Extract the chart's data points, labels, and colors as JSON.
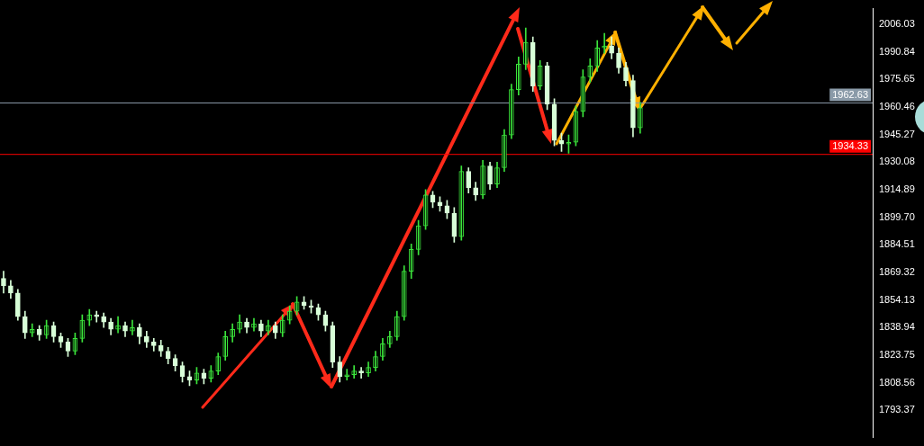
{
  "chart_data": {
    "type": "candlestick",
    "colors": [
      "#d8ffd8",
      "#d8ffd8",
      "#d8ffd8",
      "#d8ffd8",
      "#3be33b",
      "#d8ffd8",
      "#3be33b",
      "#d8ffd8",
      "#d8ffd8",
      "#d8ffd8",
      "#3be33b",
      "#3be33b",
      "#3be33b",
      "#d8ffd8",
      "#d8ffd8",
      "#d8ffd8",
      "#3be33b",
      "#d8ffd8",
      "#3be33b",
      "#d8ffd8",
      "#d8ffd8",
      "#d8ffd8",
      "#d8ffd8",
      "#d8ffd8",
      "#d8ffd8",
      "#d8ffd8",
      "#d8ffd8",
      "#3be33b",
      "#d8ffd8",
      "#3be33b",
      "#3be33b",
      "#3be33b",
      "#3be33b",
      "#3be33b",
      "#d8ffd8",
      "#3be33b",
      "#d8ffd8",
      "#3be33b",
      "#d8ffd8",
      "#3be33b",
      "#3be33b",
      "#3be33b",
      "#d8ffd8",
      "#d8ffd8",
      "#d8ffd8",
      "#d8ffd8",
      "#d8ffd8",
      "#d8ffd8",
      "#3be33b",
      "#3be33b",
      "#d8ffd8",
      "#3be33b",
      "#3be33b",
      "#3be33b",
      "#3be33b",
      "#3be33b",
      "#3be33b",
      "#3be33b",
      "#3be33b",
      "#3be33b",
      "#d8ffd8",
      "#d8ffd8",
      "#d8ffd8",
      "#d8ffd8",
      "#3be33b",
      "#d8ffd8",
      "#d8ffd8",
      "#3be33b",
      "#d8ffd8",
      "#3be33b",
      "#3be33b",
      "#3be33b",
      "#3be33b",
      "#3be33b",
      "#d8ffd8",
      "#3be33b",
      "#d8ffd8",
      "#d8ffd8",
      "#d8ffd8",
      "#3be33b",
      "#3be33b",
      "#3be33b",
      "#3be33b",
      "#3be33b",
      "#3be33b",
      "#d8ffd8",
      "#d8ffd8",
      "#d8ffd8",
      "#d8ffd8",
      "#3be33b",
      null,
      null,
      null,
      null,
      null,
      null,
      null,
      null,
      null,
      null,
      null,
      null,
      null,
      null,
      null,
      null,
      null,
      null,
      null,
      null,
      null,
      null,
      null,
      null,
      null,
      null,
      null,
      null,
      null,
      null,
      null,
      null
    ],
    "categories": [
      null,
      null,
      null,
      null,
      null,
      null,
      null,
      null,
      null,
      null,
      null,
      null,
      null,
      null,
      null,
      null,
      null,
      null,
      null,
      null,
      null,
      null,
      null,
      null,
      null,
      null,
      null,
      null,
      null,
      null,
      null,
      null,
      null,
      null,
      null,
      null,
      null,
      null,
      null,
      null,
      null,
      null,
      null,
      null,
      null,
      null,
      null,
      null,
      null,
      null,
      null,
      null,
      null,
      null,
      null,
      null,
      null,
      null,
      null,
      null,
      null,
      null,
      null,
      null,
      null,
      null,
      null,
      null,
      null,
      null,
      null,
      null,
      null,
      null,
      null,
      null,
      null,
      null,
      null,
      null,
      null,
      null,
      null,
      null,
      null,
      null,
      null,
      null,
      null,
      null,
      null,
      null,
      null,
      null,
      null,
      null,
      null,
      null,
      null,
      null,
      null,
      null,
      null,
      null,
      null,
      null,
      null,
      null,
      null,
      null,
      null,
      null,
      null,
      null,
      null,
      null,
      null,
      null,
      null,
      null,
      null,
      null
    ],
    "ohlc": [
      [
        1866,
        1870,
        1858,
        1862
      ],
      [
        1862,
        1865,
        1855,
        1858
      ],
      [
        1858,
        1860,
        1843,
        1845
      ],
      [
        1845,
        1848,
        1833,
        1836
      ],
      [
        1836,
        1841,
        1834,
        1838
      ],
      [
        1838,
        1840,
        1832,
        1835
      ],
      [
        1835,
        1843,
        1833,
        1840
      ],
      [
        1840,
        1842,
        1831,
        1834
      ],
      [
        1834,
        1836,
        1828,
        1831
      ],
      [
        1831,
        1833,
        1823,
        1826
      ],
      [
        1826,
        1836,
        1824,
        1833
      ],
      [
        1833,
        1846,
        1831,
        1843
      ],
      [
        1843,
        1849,
        1840,
        1846
      ],
      [
        1846,
        1848,
        1842,
        1845
      ],
      [
        1845,
        1847,
        1839,
        1842
      ],
      [
        1842,
        1844,
        1835,
        1838
      ],
      [
        1838,
        1845,
        1836,
        1840
      ],
      [
        1840,
        1842,
        1834,
        1837
      ],
      [
        1837,
        1843,
        1835,
        1839
      ],
      [
        1839,
        1841,
        1830,
        1834
      ],
      [
        1834,
        1837,
        1828,
        1831
      ],
      [
        1831,
        1833,
        1826,
        1829
      ],
      [
        1829,
        1832,
        1823,
        1826
      ],
      [
        1826,
        1828,
        1819,
        1822
      ],
      [
        1822,
        1824,
        1815,
        1818
      ],
      [
        1818,
        1820,
        1809,
        1812
      ],
      [
        1812,
        1815,
        1807,
        1810
      ],
      [
        1810,
        1817,
        1808,
        1814
      ],
      [
        1814,
        1816,
        1808,
        1811
      ],
      [
        1811,
        1818,
        1809,
        1815
      ],
      [
        1815,
        1825,
        1813,
        1823
      ],
      [
        1823,
        1837,
        1821,
        1834
      ],
      [
        1834,
        1841,
        1831,
        1838
      ],
      [
        1838,
        1846,
        1836,
        1842
      ],
      [
        1842,
        1844,
        1836,
        1839
      ],
      [
        1839,
        1844,
        1837,
        1841
      ],
      [
        1841,
        1843,
        1834,
        1837
      ],
      [
        1837,
        1843,
        1835,
        1840
      ],
      [
        1840,
        1842,
        1833,
        1836
      ],
      [
        1836,
        1846,
        1834,
        1843
      ],
      [
        1843,
        1851,
        1841,
        1848
      ],
      [
        1848,
        1856,
        1846,
        1853
      ],
      [
        1853,
        1856,
        1849,
        1851
      ],
      [
        1851,
        1854,
        1847,
        1850
      ],
      [
        1850,
        1852,
        1843,
        1846
      ],
      [
        1846,
        1848,
        1837,
        1840
      ],
      [
        1840,
        1842,
        1817,
        1820
      ],
      [
        1820,
        1823,
        1809,
        1812
      ],
      [
        1812,
        1816,
        1810,
        1813
      ],
      [
        1813,
        1818,
        1811,
        1815
      ],
      [
        1815,
        1817,
        1811,
        1814
      ],
      [
        1814,
        1820,
        1812,
        1817
      ],
      [
        1817,
        1826,
        1815,
        1823
      ],
      [
        1823,
        1833,
        1821,
        1830
      ],
      [
        1830,
        1837,
        1828,
        1834
      ],
      [
        1834,
        1848,
        1832,
        1845
      ],
      [
        1845,
        1873,
        1843,
        1870
      ],
      [
        1870,
        1885,
        1866,
        1882
      ],
      [
        1882,
        1898,
        1879,
        1895
      ],
      [
        1895,
        1915,
        1893,
        1912
      ],
      [
        1912,
        1914,
        1905,
        1908
      ],
      [
        1908,
        1911,
        1903,
        1906
      ],
      [
        1906,
        1909,
        1899,
        1902
      ],
      [
        1902,
        1905,
        1886,
        1889
      ],
      [
        1889,
        1928,
        1887,
        1925
      ],
      [
        1925,
        1927,
        1913,
        1916
      ],
      [
        1916,
        1919,
        1909,
        1912
      ],
      [
        1912,
        1931,
        1910,
        1928
      ],
      [
        1928,
        1930,
        1915,
        1918
      ],
      [
        1918,
        1930,
        1916,
        1927
      ],
      [
        1927,
        1948,
        1925,
        1945
      ],
      [
        1945,
        1973,
        1943,
        1970
      ],
      [
        1970,
        1988,
        1967,
        1984
      ],
      [
        1984,
        2004,
        1981,
        1996
      ],
      [
        1996,
        1999,
        1969,
        1972
      ],
      [
        1972,
        1986,
        1970,
        1983
      ],
      [
        1983,
        1985,
        1959,
        1962
      ],
      [
        1962,
        1965,
        1939,
        1942
      ],
      [
        1942,
        1946,
        1936,
        1940
      ],
      [
        1940,
        1945,
        1935,
        1941
      ],
      [
        1941,
        1961,
        1939,
        1958
      ],
      [
        1958,
        1981,
        1955,
        1977
      ],
      [
        1977,
        1987,
        1974,
        1983
      ],
      [
        1983,
        1997,
        1980,
        1993
      ],
      [
        1993,
        2001,
        1990,
        1994
      ],
      [
        1994,
        1999,
        1987,
        1990
      ],
      [
        1990,
        1993,
        1979,
        1982
      ],
      [
        1982,
        1985,
        1972,
        1975
      ],
      [
        1975,
        1978,
        1944,
        1949
      ],
      [
        1949,
        1963,
        1946,
        1960
      ],
      null,
      null,
      null,
      null,
      null,
      null,
      null,
      null,
      null,
      null,
      null,
      null,
      null,
      null,
      null,
      null,
      null,
      null,
      null,
      null,
      null,
      null,
      null,
      null,
      null,
      null,
      null,
      null,
      null,
      null,
      null,
      null
    ],
    "ylim": [
      1778.5,
      2014.6
    ],
    "yticks": [
      2006.03,
      1990.84,
      1975.65,
      1960.46,
      1945.27,
      1930.08,
      1914.89,
      {
        "value": 1899.7,
        "label": "1899.70"
      },
      1884.51,
      1869.32,
      1854.13,
      1838.94,
      1823.75,
      1808.56,
      1793.37
    ],
    "tick_labels": "y",
    "ref_lines": [
      {
        "axis": "y",
        "value": 1962.63,
        "label": "1962.63",
        "color": "#8a9aa8"
      },
      {
        "axis": "y",
        "value": 1934.33,
        "label": "1934.33",
        "color": "#ff0000"
      }
    ]
  }
}
